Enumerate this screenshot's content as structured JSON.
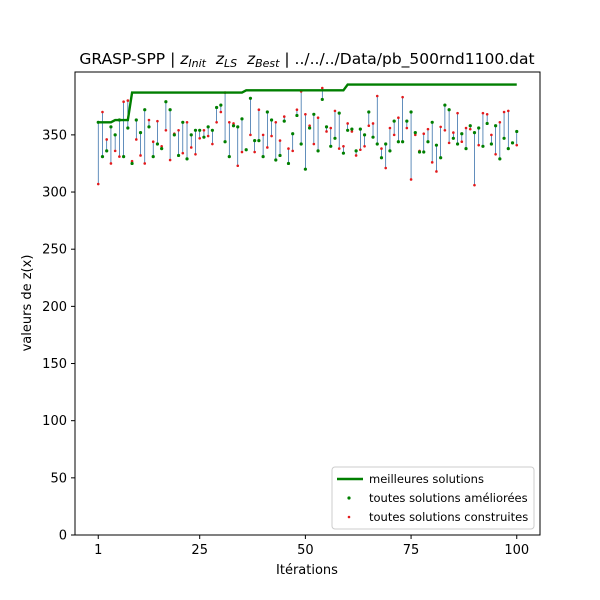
{
  "chart_data": {
    "type": "scatter",
    "title_parts": {
      "prefix": "GRASP-SPP | ",
      "z1": "z",
      "z1_sub": "Init",
      "z2": "z",
      "z2_sub": "LS",
      "z3": "z",
      "z3_sub": "Best",
      "suffix": " | ../../../Data/pb_500rnd1100.dat"
    },
    "xlabel": "Itérations",
    "ylabel": "valeurs de z(x)",
    "xlim": [
      -4.5,
      105.5
    ],
    "ylim": [
      0,
      405
    ],
    "xticks": [
      1,
      25,
      50,
      75,
      100
    ],
    "yticks": [
      0,
      50,
      100,
      150,
      200,
      250,
      300,
      350
    ],
    "legend_position": "lower-right",
    "colors": {
      "best": "#007f00",
      "ls": "#007f00",
      "init": "#e31a1c",
      "vline": "#1f5f9f"
    },
    "series": [
      {
        "name": "meilleures solutions",
        "kind": "step-line",
        "x": [
          1,
          5,
          9,
          36,
          60,
          100
        ],
        "y": [
          361,
          363,
          387,
          389,
          394,
          394
        ]
      },
      {
        "name": "toutes solutions améliorées",
        "kind": "points",
        "values": [
          361,
          331,
          336,
          357,
          350,
          363,
          331,
          356,
          325,
          363,
          352,
          372,
          357,
          331,
          342,
          338,
          379,
          372,
          350,
          332,
          361,
          329,
          350,
          354,
          354,
          348,
          357,
          354,
          374,
          376,
          344,
          331,
          358,
          357,
          364,
          337,
          382,
          345,
          345,
          331,
          370,
          363,
          328,
          332,
          362,
          325,
          351,
          367,
          342,
          320,
          356,
          368,
          336,
          381,
          357,
          340,
          347,
          369,
          334,
          354,
          355,
          336,
          355,
          350,
          370,
          348,
          342,
          330,
          342,
          336,
          362,
          344,
          344,
          362,
          370,
          352,
          335,
          335,
          344,
          361,
          341,
          330,
          376,
          372,
          347,
          342,
          351,
          338,
          358,
          352,
          356,
          340,
          360,
          342,
          358,
          329,
          347,
          338,
          343,
          353
        ]
      },
      {
        "name": "toutes solutions construites",
        "kind": "points",
        "values": [
          307,
          370,
          346,
          325,
          336,
          331,
          379,
          380,
          327,
          346,
          332,
          325,
          363,
          344,
          362,
          340,
          354,
          328,
          351,
          354,
          334,
          361,
          339,
          333,
          347,
          354,
          349,
          342,
          361,
          370,
          387,
          361,
          360,
          323,
          335,
          337,
          350,
          335,
          372,
          350,
          339,
          349,
          361,
          345,
          366,
          338,
          336,
          372,
          388,
          368,
          358,
          342,
          365,
          391,
          353,
          356,
          371,
          338,
          340,
          360,
          353,
          332,
          337,
          340,
          358,
          360,
          384,
          338,
          321,
          356,
          350,
          365,
          383,
          356,
          311,
          350,
          336,
          351,
          355,
          326,
          318,
          357,
          354,
          343,
          352,
          369,
          344,
          356,
          355,
          306,
          341,
          369,
          368,
          350,
          333,
          361,
          370,
          371,
          343,
          341
        ]
      }
    ]
  }
}
